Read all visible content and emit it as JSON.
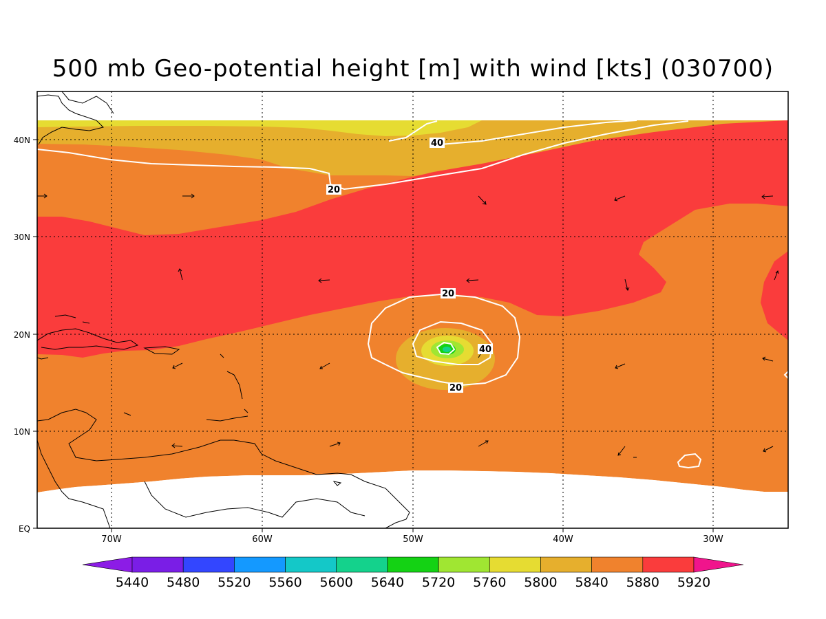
{
  "title": "500 mb Geo-potential height [m] with wind [kts] (030700)",
  "axes": {
    "lat_labels": [
      "40N",
      "30N",
      "20N",
      "10N",
      "EQ"
    ],
    "lon_labels": [
      "70W",
      "60W",
      "50W",
      "40W",
      "30W"
    ]
  },
  "colorbar": {
    "levels": [
      "5440",
      "5480",
      "5520",
      "5560",
      "5600",
      "5640",
      "5720",
      "5760",
      "5800",
      "5840",
      "5880",
      "5920"
    ],
    "colors": [
      "#8c1ce6",
      "#7a1ee6",
      "#3346ff",
      "#1499ff",
      "#14c8c8",
      "#14d28c",
      "#14d214",
      "#a0e632",
      "#e6dc32",
      "#e6af2d",
      "#f0822d",
      "#fa3c3c",
      "#f0148c"
    ]
  },
  "wind_contours": {
    "labels": [
      "40",
      "20",
      "20",
      "40",
      "20"
    ]
  },
  "colors": {
    "c5920": "#fa3c3c",
    "c5880": "#f0822d",
    "c5840": "#e6af2d",
    "c5800": "#e6dc32",
    "c5760": "#a0e632",
    "c5720": "#14d214",
    "contour": "#ffffff"
  }
}
